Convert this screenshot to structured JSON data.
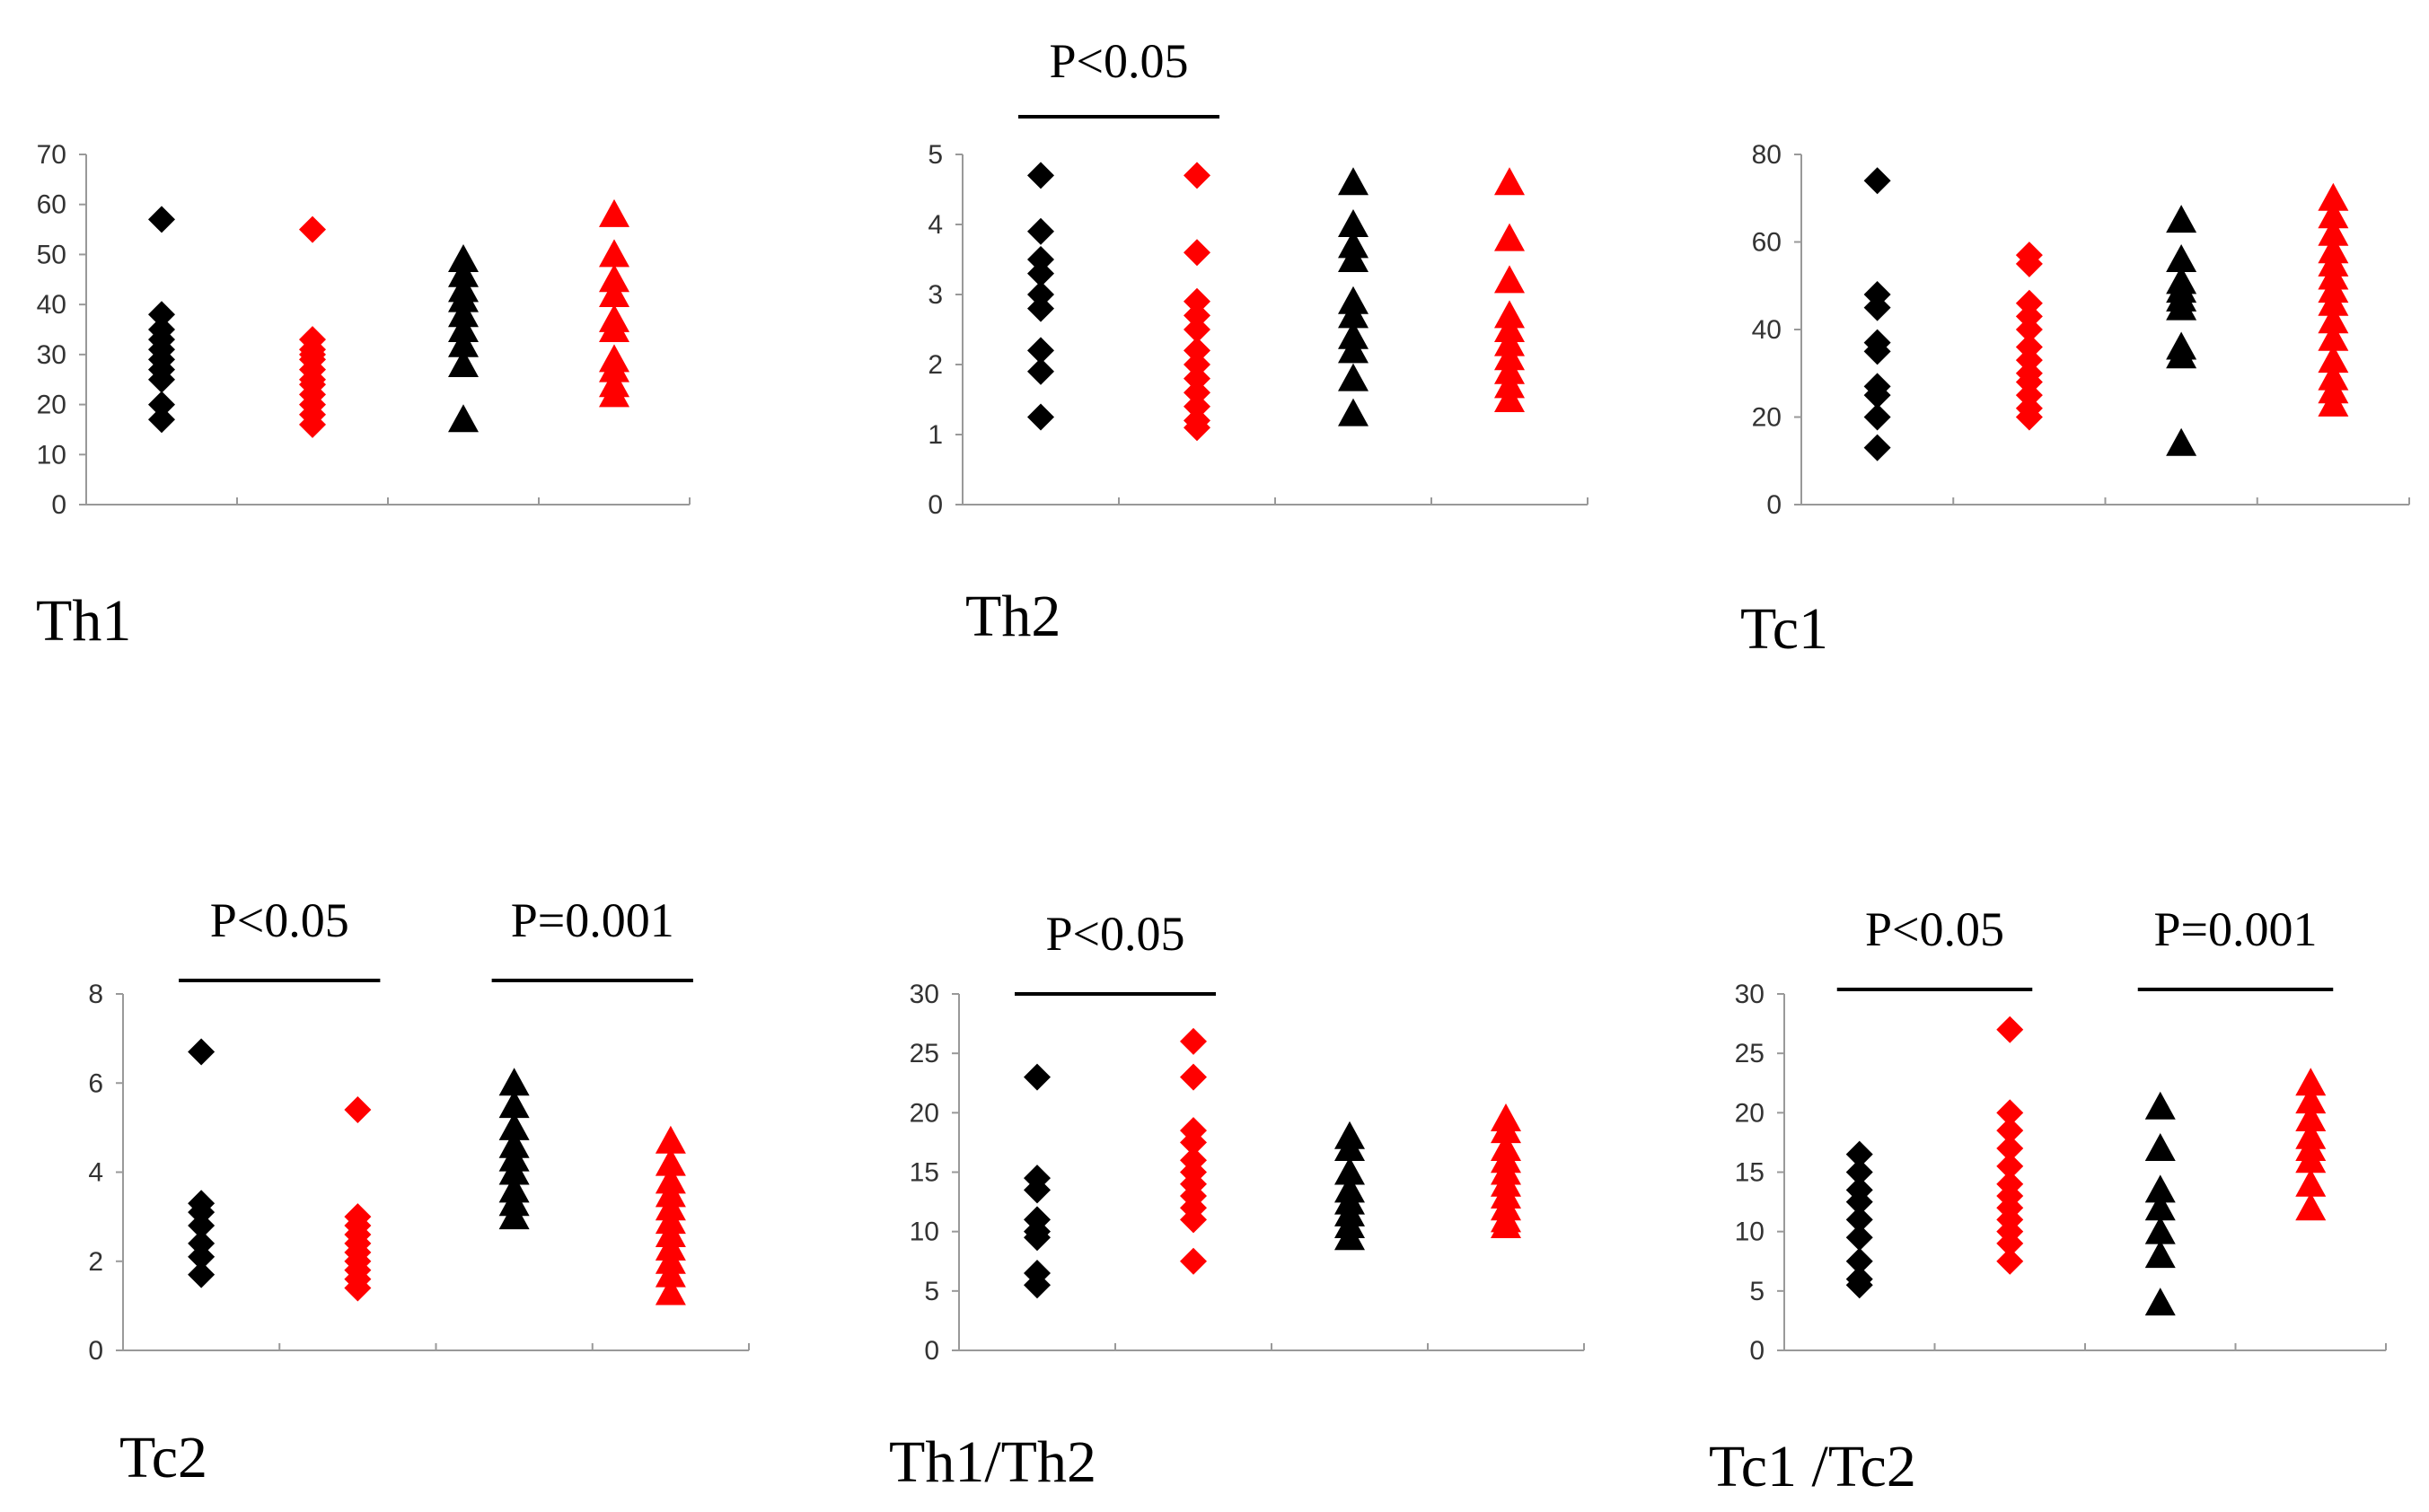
{
  "figure": {
    "colors": {
      "black": "#000000",
      "red": "#ff0000",
      "axis": "#999999"
    },
    "marker_legend": {
      "diamond": "first group (left pair)",
      "triangle": "second group (right pair)"
    }
  },
  "chart_data": [
    {
      "type": "scatter",
      "title": "Th1",
      "ylim": [
        0,
        70
      ],
      "yticks": [
        0,
        10,
        20,
        30,
        40,
        50,
        60,
        70
      ],
      "series": [
        {
          "name": "black-diamond",
          "color": "#000000",
          "marker": "diamond",
          "column": 1,
          "values": [
            57,
            38,
            35,
            33,
            31,
            29,
            27,
            25,
            20,
            17
          ]
        },
        {
          "name": "red-diamond",
          "color": "#ff0000",
          "marker": "diamond",
          "column": 2,
          "values": [
            55,
            33,
            31,
            30,
            29,
            27,
            25,
            24,
            22,
            20,
            18,
            16
          ]
        },
        {
          "name": "black-triangle",
          "color": "#000000",
          "marker": "triangle",
          "column": 3,
          "values": [
            49,
            46,
            43,
            41,
            38,
            35,
            32,
            28,
            17
          ]
        },
        {
          "name": "red-triangle",
          "color": "#ff0000",
          "marker": "triangle",
          "column": 4,
          "values": [
            58,
            50,
            45,
            42,
            37,
            35,
            29,
            27,
            24,
            22
          ]
        }
      ],
      "significance": []
    },
    {
      "type": "scatter",
      "title": "Th2",
      "ylim": [
        0,
        5
      ],
      "yticks": [
        0,
        1,
        2,
        3,
        4,
        5
      ],
      "series": [
        {
          "name": "black-diamond",
          "color": "#000000",
          "marker": "diamond",
          "column": 1,
          "values": [
            4.7,
            3.9,
            3.5,
            3.3,
            3.0,
            2.8,
            2.2,
            1.9,
            1.25
          ]
        },
        {
          "name": "red-diamond",
          "color": "#ff0000",
          "marker": "diamond",
          "column": 2,
          "values": [
            4.7,
            3.6,
            2.9,
            2.7,
            2.5,
            2.2,
            2.0,
            1.8,
            1.6,
            1.4,
            1.2,
            1.1
          ]
        },
        {
          "name": "black-triangle",
          "color": "#000000",
          "marker": "triangle",
          "column": 3,
          "values": [
            4.6,
            4.0,
            3.7,
            3.5,
            2.9,
            2.7,
            2.4,
            2.2,
            1.8,
            1.3
          ]
        },
        {
          "name": "red-triangle",
          "color": "#ff0000",
          "marker": "triangle",
          "column": 4,
          "values": [
            4.6,
            3.8,
            3.2,
            2.7,
            2.5,
            2.3,
            2.1,
            1.9,
            1.7,
            1.5
          ]
        }
      ],
      "significance": [
        {
          "label": "P<0.05",
          "from": 1,
          "to": 2
        }
      ]
    },
    {
      "type": "scatter",
      "title": "Tc1",
      "ylim": [
        0,
        80
      ],
      "yticks": [
        0,
        20,
        40,
        60,
        80
      ],
      "series": [
        {
          "name": "black-diamond",
          "color": "#000000",
          "marker": "diamond",
          "column": 1,
          "values": [
            74,
            48,
            45,
            37,
            35,
            27,
            25,
            20,
            13
          ]
        },
        {
          "name": "red-diamond",
          "color": "#ff0000",
          "marker": "diamond",
          "column": 2,
          "values": [
            57,
            55,
            46,
            43,
            40,
            36,
            33,
            30,
            28,
            25,
            22,
            20
          ]
        },
        {
          "name": "black-triangle",
          "color": "#000000",
          "marker": "triangle",
          "column": 3,
          "values": [
            65,
            56,
            51,
            49,
            47,
            45,
            36,
            34,
            14
          ]
        },
        {
          "name": "red-triangle",
          "color": "#ff0000",
          "marker": "triangle",
          "column": 4,
          "values": [
            70,
            66,
            62,
            58,
            55,
            52,
            49,
            46,
            42,
            38,
            33,
            29,
            26,
            23
          ]
        }
      ],
      "significance": []
    },
    {
      "type": "scatter",
      "title": "Tc2",
      "ylim": [
        0,
        8
      ],
      "yticks": [
        0,
        2,
        4,
        6,
        8
      ],
      "series": [
        {
          "name": "black-diamond",
          "color": "#000000",
          "marker": "diamond",
          "column": 1,
          "values": [
            6.7,
            3.3,
            3.1,
            2.8,
            2.4,
            2.1,
            1.7
          ]
        },
        {
          "name": "red-diamond",
          "color": "#ff0000",
          "marker": "diamond",
          "column": 2,
          "values": [
            5.4,
            3.0,
            2.8,
            2.6,
            2.4,
            2.2,
            2.0,
            1.8,
            1.6,
            1.4
          ]
        },
        {
          "name": "black-triangle",
          "color": "#000000",
          "marker": "triangle",
          "column": 3,
          "values": [
            6.0,
            5.5,
            5.0,
            4.6,
            4.3,
            4.0,
            3.6,
            3.3,
            3.0
          ]
        },
        {
          "name": "red-triangle",
          "color": "#ff0000",
          "marker": "triangle",
          "column": 4,
          "values": [
            4.7,
            4.2,
            3.8,
            3.5,
            3.2,
            2.9,
            2.6,
            2.3,
            2.0,
            1.7,
            1.3
          ]
        }
      ],
      "significance": [
        {
          "label": "P<0.05",
          "from": 1,
          "to": 2
        },
        {
          "label": "P=0.001",
          "from": 3,
          "to": 4
        }
      ]
    },
    {
      "type": "scatter",
      "title": "Th1/Th2",
      "ylim": [
        0,
        30
      ],
      "yticks": [
        0,
        5,
        10,
        15,
        20,
        25,
        30
      ],
      "series": [
        {
          "name": "black-diamond",
          "color": "#000000",
          "marker": "diamond",
          "column": 1,
          "values": [
            23,
            14.5,
            13.5,
            11,
            10,
            9.5,
            6.5,
            5.5
          ]
        },
        {
          "name": "red-diamond",
          "color": "#ff0000",
          "marker": "diamond",
          "column": 2,
          "values": [
            26,
            23,
            18.5,
            17.5,
            16,
            15,
            14,
            13,
            12,
            11,
            7.5
          ]
        },
        {
          "name": "black-triangle",
          "color": "#000000",
          "marker": "triangle",
          "column": 3,
          "values": [
            18,
            17,
            15,
            13.5,
            12.5,
            11.5,
            10.5,
            9.5
          ]
        },
        {
          "name": "red-triangle",
          "color": "#ff0000",
          "marker": "triangle",
          "column": 4,
          "values": [
            19.5,
            18.5,
            17,
            16,
            15,
            14,
            13,
            12,
            11,
            10.5
          ]
        }
      ],
      "significance": [
        {
          "label": "P<0.05",
          "from": 1,
          "to": 2
        }
      ]
    },
    {
      "type": "scatter",
      "title": "Tc1 /Tc2",
      "ylim": [
        0,
        30
      ],
      "yticks": [
        0,
        5,
        10,
        15,
        20,
        25,
        30
      ],
      "series": [
        {
          "name": "black-diamond",
          "color": "#000000",
          "marker": "diamond",
          "column": 1,
          "values": [
            16.5,
            15,
            13.5,
            12.5,
            11,
            9.5,
            7.5,
            6,
            5.5
          ]
        },
        {
          "name": "red-diamond",
          "color": "#ff0000",
          "marker": "diamond",
          "column": 2,
          "values": [
            27,
            20,
            18.5,
            17,
            15.5,
            14,
            13,
            12,
            11,
            10,
            9,
            7.5
          ]
        },
        {
          "name": "black-triangle",
          "color": "#000000",
          "marker": "triangle",
          "column": 3,
          "values": [
            20.5,
            17,
            13.5,
            12,
            10,
            8,
            4
          ]
        },
        {
          "name": "red-triangle",
          "color": "#ff0000",
          "marker": "triangle",
          "column": 4,
          "values": [
            22.5,
            21,
            19.5,
            18,
            17,
            16,
            14,
            12
          ]
        }
      ],
      "significance": [
        {
          "label": "P<0.05",
          "from": 1,
          "to": 2
        },
        {
          "label": "P=0.001",
          "from": 3,
          "to": 4
        }
      ]
    }
  ]
}
